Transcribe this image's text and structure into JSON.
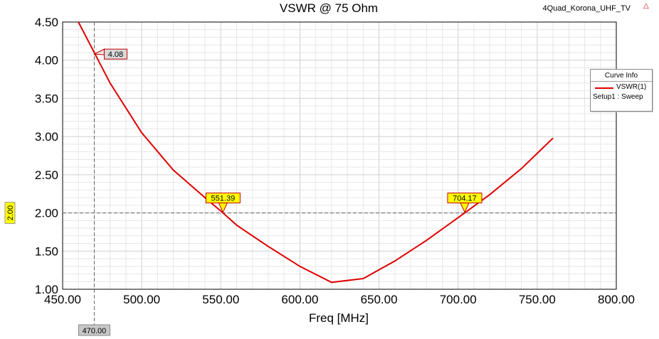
{
  "project": "4Quad_Korona_UHF_TV",
  "corner_icon": "antenna-icon",
  "legend": {
    "title": "Curve Info",
    "series": "VSWR(1)",
    "sweep": "Setup1 : Sweep"
  },
  "chart_data": {
    "type": "line",
    "title": "VSWR @ 75 Ohm",
    "xlabel": "Freq [MHz]",
    "ylabel": "",
    "xlim": [
      450,
      800
    ],
    "ylim": [
      1.0,
      4.5
    ],
    "x_ticks": [
      "450.00",
      "500.00",
      "550.00",
      "600.00",
      "650.00",
      "700.00",
      "750.00",
      "800.00"
    ],
    "y_ticks": [
      "1.00",
      "1.50",
      "2.00",
      "2.50",
      "3.00",
      "3.50",
      "4.00",
      "4.50"
    ],
    "grid": true,
    "series": [
      {
        "name": "VSWR(1)",
        "color": "#e00000",
        "x": [
          460,
          480,
          500,
          520,
          540,
          551.39,
          560,
          580,
          600,
          620,
          640,
          660,
          680,
          704.17,
          720,
          740,
          760
        ],
        "y": [
          4.5,
          3.7,
          3.05,
          2.56,
          2.2,
          2.0,
          1.84,
          1.56,
          1.3,
          1.09,
          1.14,
          1.37,
          1.64,
          2.0,
          2.24,
          2.58,
          2.98
        ]
      }
    ],
    "markers": [
      {
        "x": 470,
        "y": 4.08,
        "label": "4.08",
        "axis_label": "470.00"
      },
      {
        "x": 551.39,
        "y": 2.0,
        "label": "551.39"
      },
      {
        "x": 704.17,
        "y": 2.0,
        "label": "704.17"
      }
    ],
    "hline": {
      "y": 2.0,
      "label": "2.00"
    }
  }
}
